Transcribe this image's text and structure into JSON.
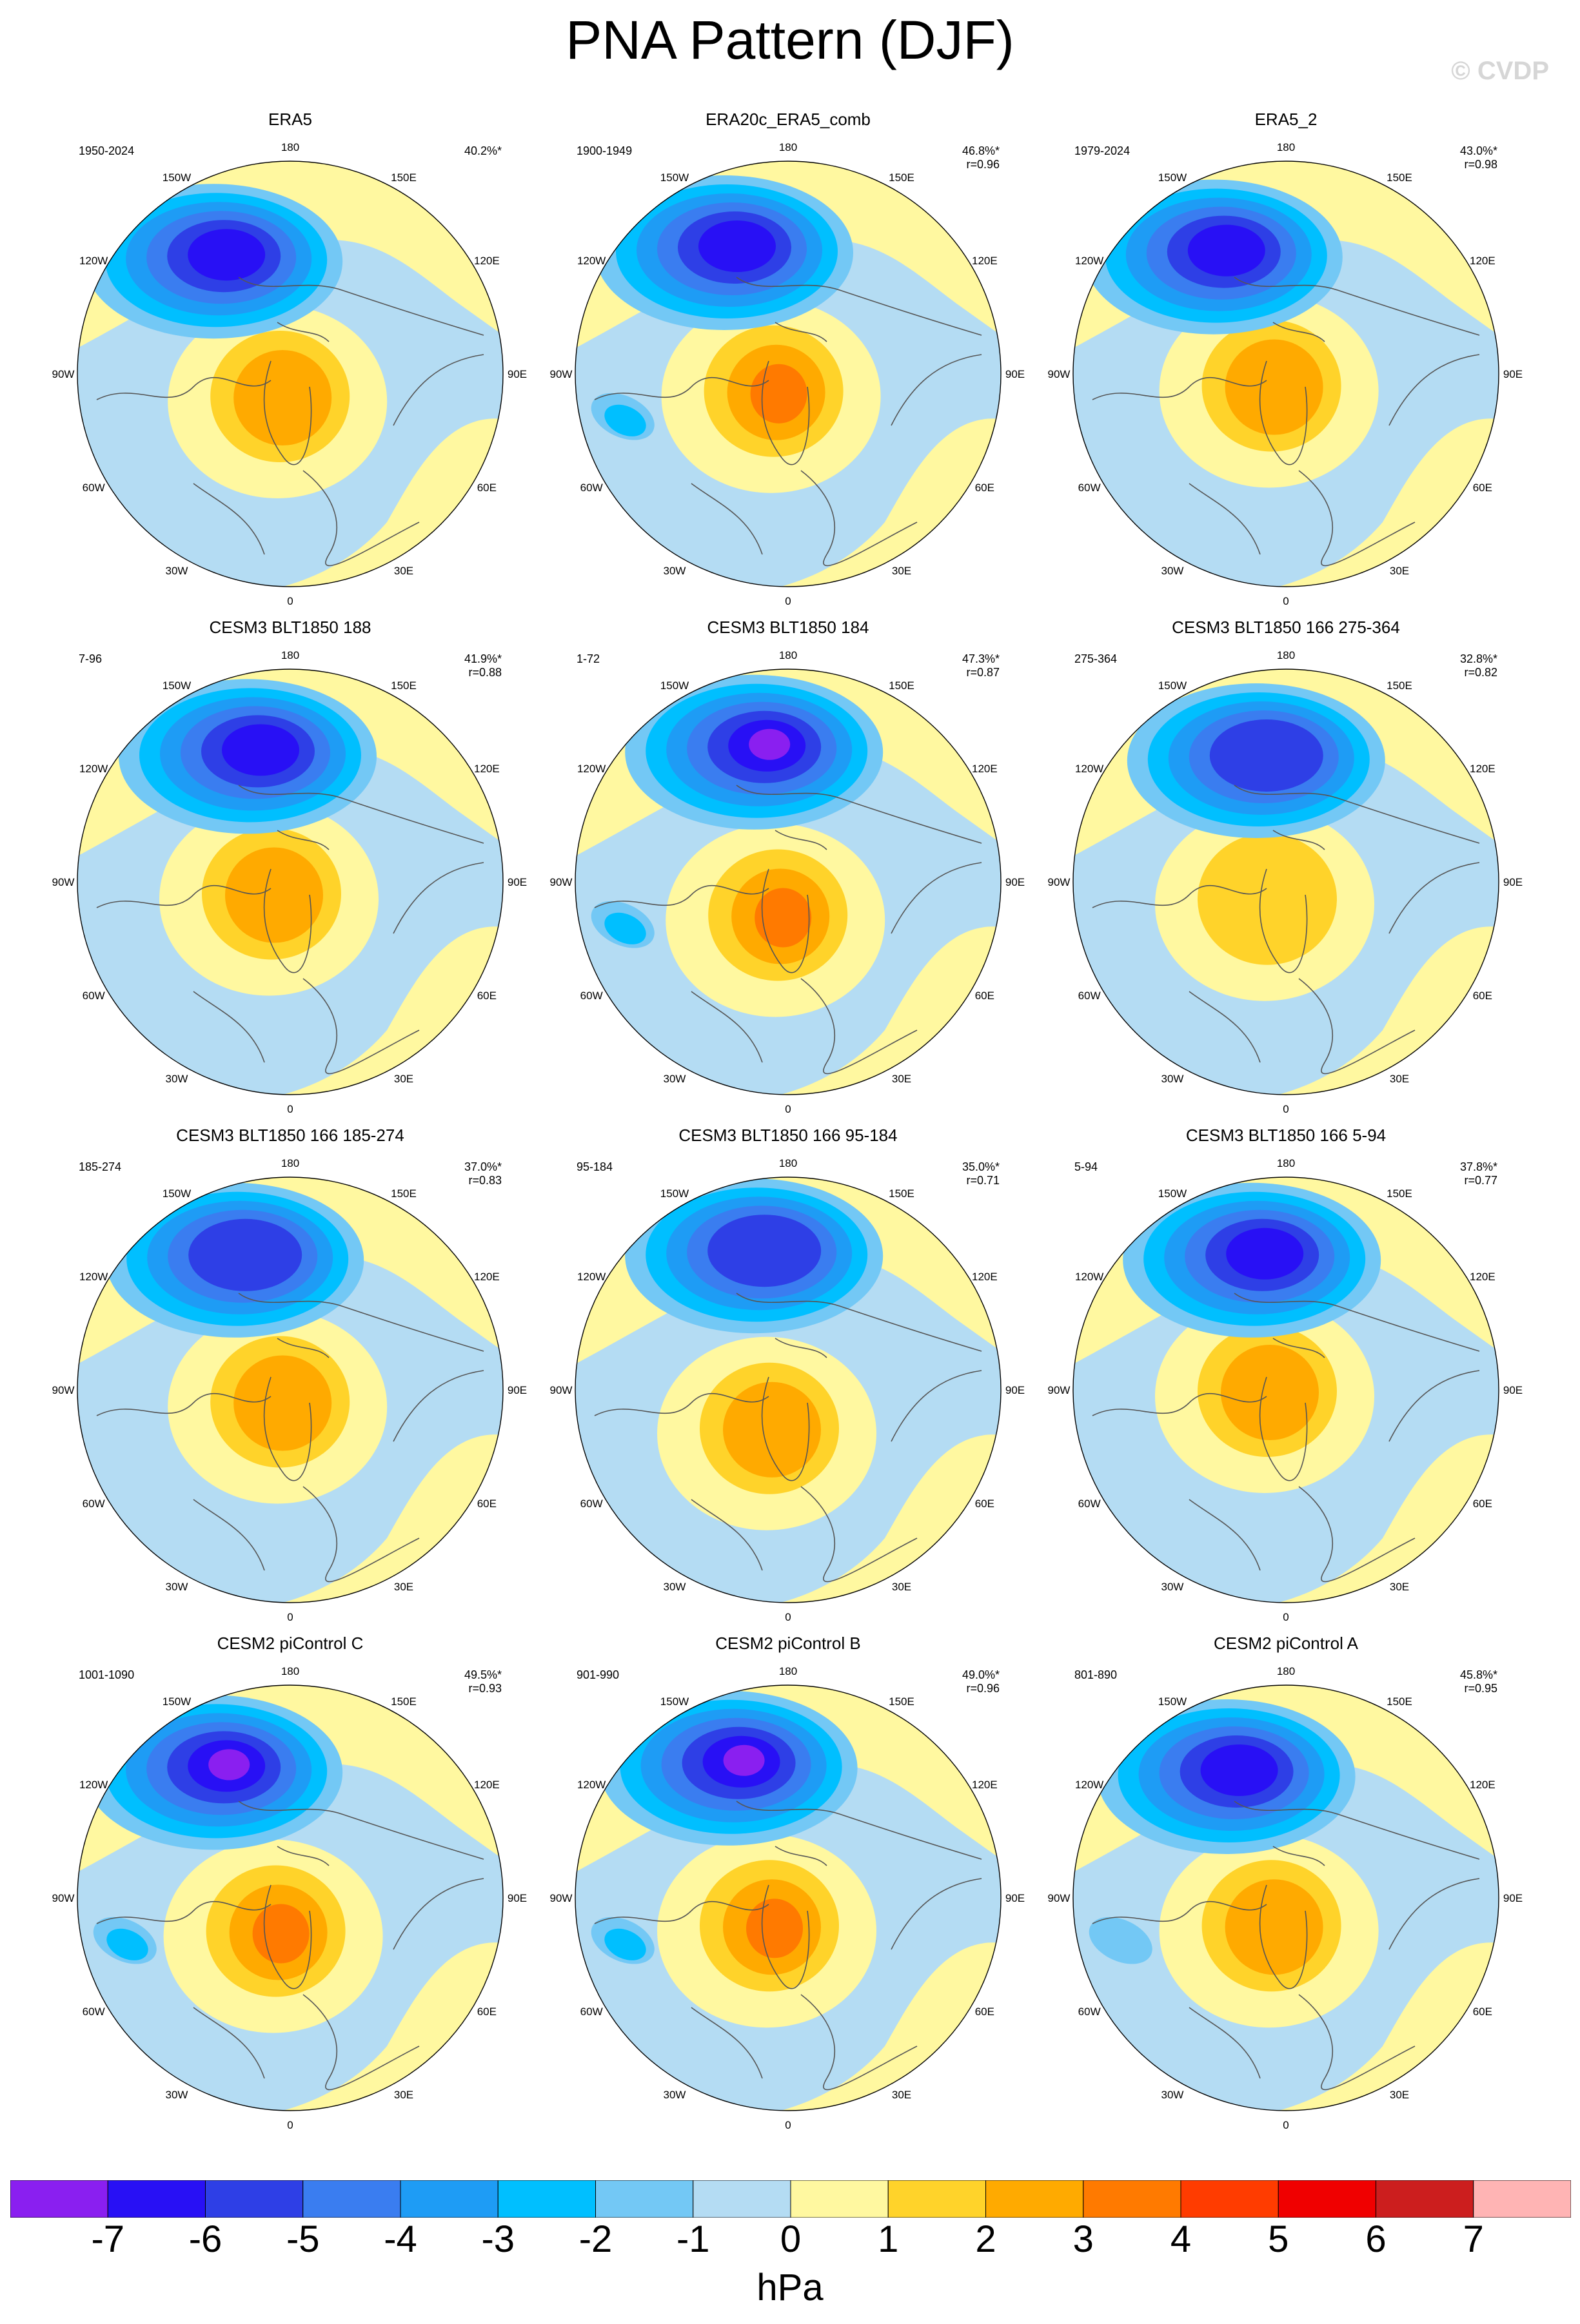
{
  "title": "PNA Pattern (DJF)",
  "watermark": "© CVDP",
  "units": "hPa",
  "lon_labels": [
    "180",
    "150E",
    "120E",
    "90E",
    "60E",
    "30E",
    "0",
    "30W",
    "60W",
    "90W",
    "120W",
    "150W"
  ],
  "panels": [
    {
      "title": "ERA5",
      "period": "1950-2024",
      "pct": "40.2%*",
      "r": "",
      "low_level": 6,
      "high_level": 2,
      "low_center": [
        0.32,
        0.22
      ],
      "high_center": [
        0.47,
        0.44
      ],
      "pac_low": 0
    },
    {
      "title": "ERA20c_ERA5_comb",
      "period": "1900-1949",
      "pct": "46.8%*",
      "r": "r=0.96",
      "low_level": 6,
      "high_level": 3,
      "low_center": [
        0.35,
        0.2
      ],
      "high_center": [
        0.46,
        0.43
      ],
      "pac_low": 2
    },
    {
      "title": "ERA5_2",
      "period": "1979-2024",
      "pct": "43.0%*",
      "r": "r=0.98",
      "low_level": 6,
      "high_level": 2,
      "low_center": [
        0.33,
        0.21
      ],
      "high_center": [
        0.46,
        0.42
      ],
      "pac_low": 0
    },
    {
      "title": "CESM3 BLT1850 188",
      "period": "7-96",
      "pct": "41.9%*",
      "r": "r=0.88",
      "low_level": 6,
      "high_level": 2,
      "low_center": [
        0.4,
        0.19
      ],
      "high_center": [
        0.45,
        0.42
      ],
      "pac_low": 0
    },
    {
      "title": "CESM3 BLT1850 184",
      "period": "1-72",
      "pct": "47.3%*",
      "r": "r=0.87",
      "low_level": 7,
      "high_level": 3,
      "low_center": [
        0.42,
        0.18
      ],
      "high_center": [
        0.47,
        0.46
      ],
      "pac_low": 2
    },
    {
      "title": "CESM3 BLT1850 166 275-364",
      "period": "275-364",
      "pct": "32.8%*",
      "r": "r=0.82",
      "low_level": 5,
      "high_level": 1,
      "low_center": [
        0.43,
        0.2
      ],
      "high_center": [
        0.45,
        0.43
      ],
      "pac_low": 0
    },
    {
      "title": "CESM3 BLT1850 166 185-274",
      "period": "185-274",
      "pct": "37.0%*",
      "r": "r=0.83",
      "low_level": 5,
      "high_level": 2,
      "low_center": [
        0.37,
        0.18
      ],
      "high_center": [
        0.47,
        0.42
      ],
      "pac_low": 0
    },
    {
      "title": "CESM3 BLT1850 166 95-184",
      "period": "95-184",
      "pct": "35.0%*",
      "r": "r=0.71",
      "low_level": 5,
      "high_level": 2,
      "low_center": [
        0.42,
        0.17
      ],
      "high_center": [
        0.45,
        0.47
      ],
      "pac_low": 0
    },
    {
      "title": "CESM3 BLT1850 166 5-94",
      "period": "5-94",
      "pct": "37.8%*",
      "r": "r=0.77",
      "low_level": 6,
      "high_level": 2,
      "low_center": [
        0.42,
        0.18
      ],
      "high_center": [
        0.45,
        0.4
      ],
      "pac_low": 0
    },
    {
      "title": "CESM2 piControl C",
      "period": "1001-1090",
      "pct": "49.5%*",
      "r": "r=0.93",
      "low_level": 7,
      "high_level": 3,
      "low_center": [
        0.32,
        0.19
      ],
      "high_center": [
        0.46,
        0.46
      ],
      "pac_low": 2
    },
    {
      "title": "CESM2 piControl B",
      "period": "901-990",
      "pct": "49.0%*",
      "r": "r=0.96",
      "low_level": 7,
      "high_level": 3,
      "low_center": [
        0.36,
        0.18
      ],
      "high_center": [
        0.45,
        0.45
      ],
      "pac_low": 2
    },
    {
      "title": "CESM2 piControl A",
      "period": "801-890",
      "pct": "45.8%*",
      "r": "r=0.95",
      "low_level": 6,
      "high_level": 2,
      "low_center": [
        0.36,
        0.2
      ],
      "high_center": [
        0.46,
        0.45
      ],
      "pac_low": 1
    }
  ],
  "colorbar": {
    "colors": [
      "#8a1ff0",
      "#2810f5",
      "#2e3fe6",
      "#3a7df0",
      "#1e9cf5",
      "#00bfff",
      "#73c8f5",
      "#b4dcf3",
      "#fff8a0",
      "#ffd32a",
      "#ffaa00",
      "#ff7a00",
      "#ff3c00",
      "#f00000",
      "#cc1e1e",
      "#ffb4b4"
    ],
    "ticks": [
      "-7",
      "-6",
      "-5",
      "-4",
      "-3",
      "-2",
      "-1",
      "0",
      "1",
      "2",
      "3",
      "4",
      "5",
      "6",
      "7"
    ]
  },
  "map_colors": {
    "neg": [
      "#b4dcf3",
      "#73c8f5",
      "#00bfff",
      "#1e9cf5",
      "#3a7df0",
      "#2e3fe6",
      "#2810f5",
      "#8a1ff0"
    ],
    "pos": [
      "#fff8a0",
      "#ffd32a",
      "#ffaa00",
      "#ff7a00"
    ]
  }
}
